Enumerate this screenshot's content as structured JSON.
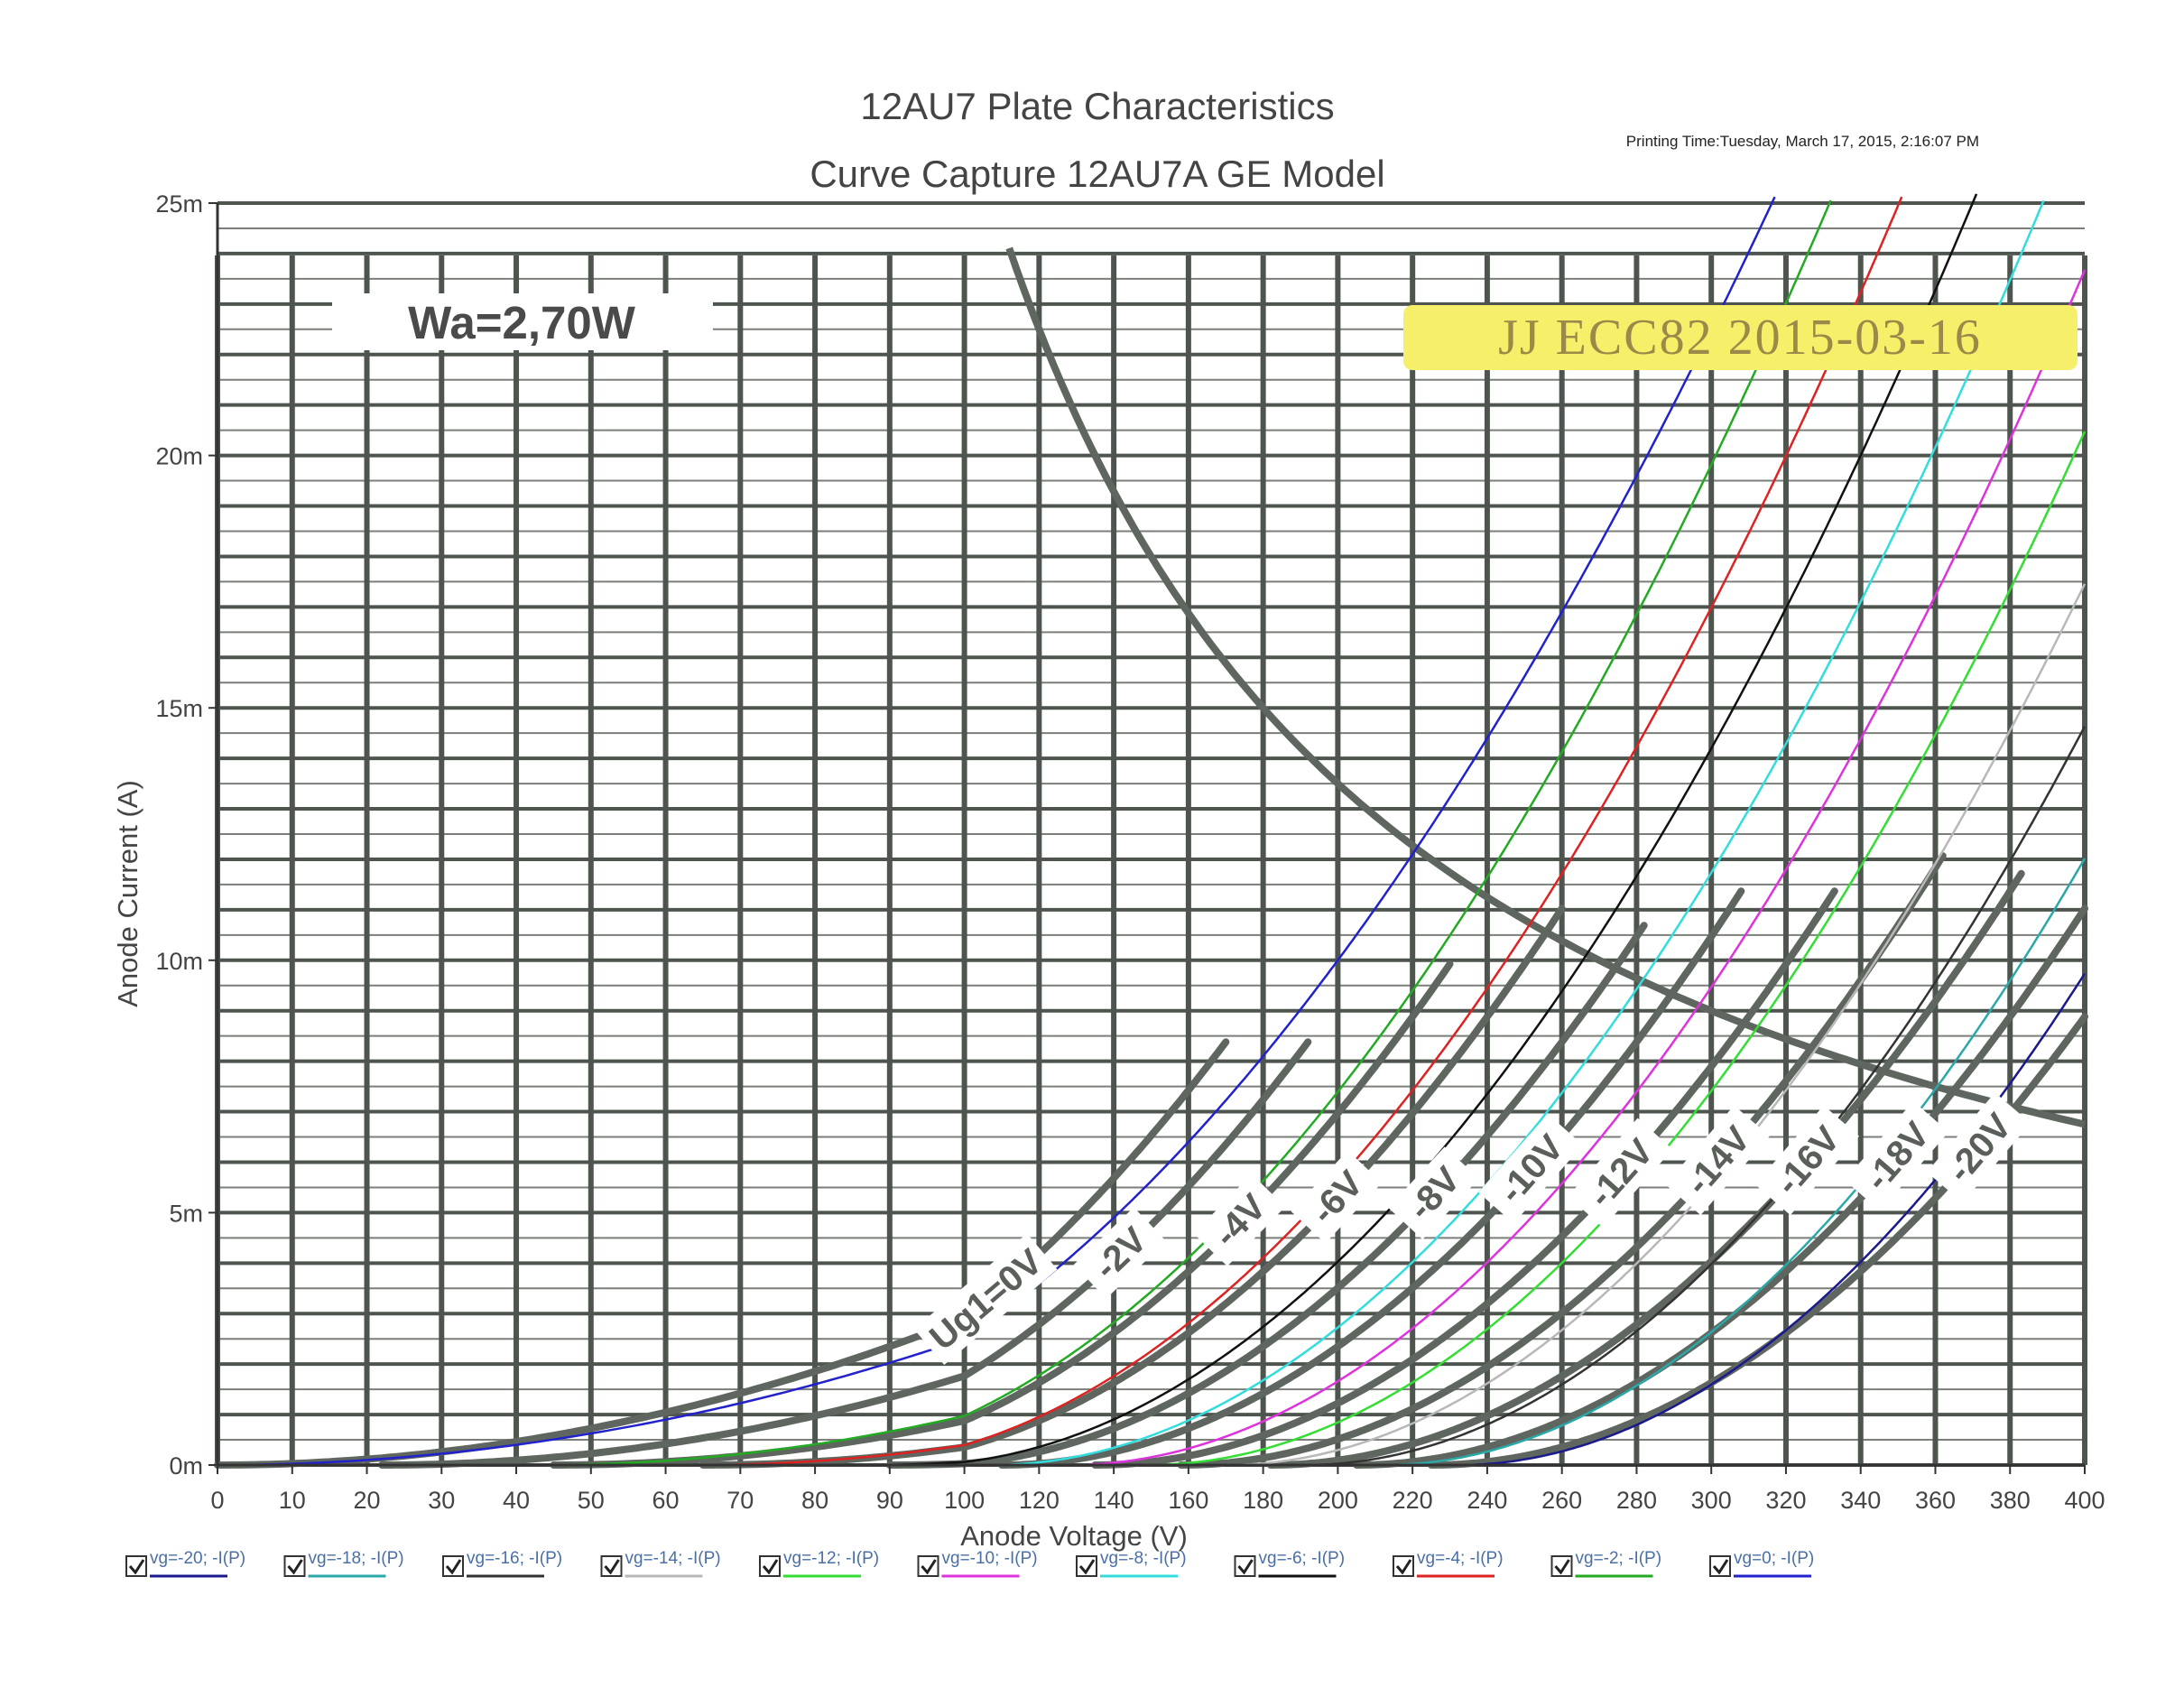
{
  "chart_data": {
    "type": "line",
    "title": "12AU7 Plate Characteristics",
    "subtitle": "Curve Capture 12AU7A GE Model",
    "printing_time": "Printing Time:Tuesday, March 17, 2015, 2:16:07 PM",
    "xlabel": "Anode Voltage (V)",
    "ylabel": "Anode Current (A)",
    "xlim": [
      0,
      400
    ],
    "ylim": [
      0,
      0.025
    ],
    "x_ticks": [
      "0",
      "10",
      "20",
      "30",
      "40",
      "50",
      "60",
      "70",
      "80",
      "90",
      "100",
      "120",
      "140",
      "160",
      "180",
      "200",
      "220",
      "240",
      "260",
      "280",
      "300",
      "320",
      "340",
      "360",
      "380",
      "400"
    ],
    "y_ticks": [
      "0m",
      "5m",
      "10m",
      "15m",
      "20m",
      "25m"
    ],
    "grid": true,
    "wa_label": "Wa=2,70W",
    "stamp": "JJ ECC82 2015-03-16",
    "power_curve_watts": 2.7,
    "series": [
      {
        "name": "vg=-20; -I(P)",
        "color": "#1a1a8c",
        "x0": 232,
        "k": 3.45e-07,
        "x_end": 400
      },
      {
        "name": "vg=-18; -I(P)",
        "color": "#2aa8a8",
        "x0": 212,
        "k": 3.4e-07,
        "x_end": 400
      },
      {
        "name": "vg=-16; -I(P)",
        "color": "#333333",
        "x0": 191,
        "k": 3.35e-07,
        "x_end": 400
      },
      {
        "name": "vg=-14; -I(P)",
        "color": "#b8b8b8",
        "x0": 170,
        "k": 3.3e-07,
        "x_end": 400
      },
      {
        "name": "vg=-12; -I(P)",
        "color": "#33dd33",
        "x0": 149,
        "k": 3.25e-07,
        "x_end": 400
      },
      {
        "name": "vg=-10; -I(P)",
        "color": "#dd33dd",
        "x0": 128,
        "k": 3.2e-07,
        "x_end": 400
      },
      {
        "name": "vg=-8; -I(P)",
        "color": "#33dddd",
        "x0": 107,
        "k": 3.15e-07,
        "x_end": 400
      },
      {
        "name": "vg=-6; -I(P)",
        "color": "#111111",
        "x0": 86,
        "k": 3.1e-07,
        "x_end": 400
      },
      {
        "name": "vg=-4; -I(P)",
        "color": "#dd2222",
        "x0": 64,
        "k": 3.05e-07,
        "x_end": 400
      },
      {
        "name": "vg=-2; -I(P)",
        "color": "#22aa22",
        "x0": 43,
        "k": 3e-07,
        "x_end": 400
      },
      {
        "name": "vg=0; -I(P)",
        "color": "#2222cc",
        "x0": 0,
        "k": 2.5e-07,
        "x_end": 400
      }
    ],
    "overlay_curves": [
      {
        "label": "Ug1=0V",
        "x0": 0,
        "k": 2.9e-07,
        "x_end": 170
      },
      {
        "label": "-2V",
        "x0": 22,
        "k": 2.9e-07,
        "x_end": 192
      },
      {
        "label": "-4V",
        "x0": 45,
        "k": 2.9e-07,
        "x_end": 230
      },
      {
        "label": "-6V",
        "x0": 65,
        "k": 2.9e-07,
        "x_end": 260
      },
      {
        "label": "-8V",
        "x0": 90,
        "k": 2.9e-07,
        "x_end": 282
      },
      {
        "label": "-10V",
        "x0": 110,
        "k": 2.9e-07,
        "x_end": 308
      },
      {
        "label": "-12V",
        "x0": 135,
        "k": 2.9e-07,
        "x_end": 333
      },
      {
        "label": "-14V",
        "x0": 158,
        "k": 2.9e-07,
        "x_end": 362
      },
      {
        "label": "-16V",
        "x0": 182,
        "k": 2.9e-07,
        "x_end": 383
      },
      {
        "label": "-18V",
        "x0": 205,
        "k": 2.9e-07,
        "x_end": 400
      },
      {
        "label": "-20V",
        "x0": 225,
        "k": 2.9e-07,
        "x_end": 400
      }
    ]
  }
}
